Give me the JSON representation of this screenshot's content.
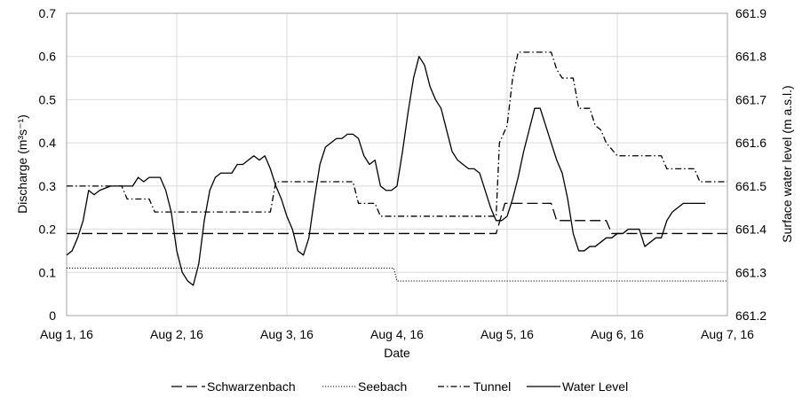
{
  "chart_data": {
    "type": "line",
    "title": "",
    "xlabel": "Date",
    "ylabel_left": "Discharge (m³s⁻¹)",
    "ylabel_right": "Surface water level (m a.s.l.)",
    "x_ticks": [
      "Aug 1, 16",
      "Aug 2, 16",
      "Aug 3, 16",
      "Aug 4, 16",
      "Aug 5, 16",
      "Aug 6, 16",
      "Aug 7, 16"
    ],
    "xlim_days": [
      0,
      6
    ],
    "ylim_left": [
      0,
      0.7
    ],
    "yticks_left": [
      "0",
      "0.1",
      "0.2",
      "0.3",
      "0.4",
      "0.5",
      "0.6",
      "0.7"
    ],
    "ylim_right": [
      661.2,
      661.9
    ],
    "yticks_right": [
      "661.2",
      "661.3",
      "661.4",
      "661.5",
      "661.6",
      "661.7",
      "661.8",
      "661.9"
    ],
    "grid": true,
    "legend_position": "bottom",
    "series": [
      {
        "name": "Schwarzenbach",
        "axis": "left",
        "dash": "dashed",
        "points": [
          [
            0,
            0.19
          ],
          [
            3.9,
            0.19
          ],
          [
            3.98,
            0.26
          ],
          [
            4.4,
            0.26
          ],
          [
            4.45,
            0.22
          ],
          [
            4.9,
            0.22
          ],
          [
            4.95,
            0.19
          ],
          [
            6,
            0.19
          ]
        ]
      },
      {
        "name": "Seebach",
        "axis": "left",
        "dash": "dotted",
        "points": [
          [
            0,
            0.11
          ],
          [
            2.97,
            0.11
          ],
          [
            3.0,
            0.08
          ],
          [
            6,
            0.08
          ]
        ]
      },
      {
        "name": "Tunnel",
        "axis": "left",
        "dash": "dashdot",
        "points": [
          [
            0,
            0.3
          ],
          [
            0.5,
            0.3
          ],
          [
            0.55,
            0.27
          ],
          [
            0.75,
            0.27
          ],
          [
            0.8,
            0.24
          ],
          [
            1.85,
            0.24
          ],
          [
            1.9,
            0.31
          ],
          [
            2.6,
            0.31
          ],
          [
            2.65,
            0.26
          ],
          [
            2.8,
            0.26
          ],
          [
            2.85,
            0.23
          ],
          [
            3.9,
            0.23
          ],
          [
            3.93,
            0.4
          ],
          [
            4.0,
            0.44
          ],
          [
            4.05,
            0.55
          ],
          [
            4.1,
            0.61
          ],
          [
            4.4,
            0.61
          ],
          [
            4.45,
            0.57
          ],
          [
            4.5,
            0.55
          ],
          [
            4.6,
            0.55
          ],
          [
            4.65,
            0.48
          ],
          [
            4.75,
            0.48
          ],
          [
            4.8,
            0.44
          ],
          [
            4.85,
            0.43
          ],
          [
            4.9,
            0.4
          ],
          [
            5.0,
            0.37
          ],
          [
            5.4,
            0.37
          ],
          [
            5.45,
            0.34
          ],
          [
            5.7,
            0.34
          ],
          [
            5.75,
            0.31
          ],
          [
            6,
            0.31
          ]
        ]
      },
      {
        "name": "Water Level",
        "axis": "right",
        "dash": "solid",
        "points": [
          [
            0,
            661.34
          ],
          [
            0.05,
            661.35
          ],
          [
            0.1,
            661.38
          ],
          [
            0.15,
            661.42
          ],
          [
            0.2,
            661.49
          ],
          [
            0.25,
            661.48
          ],
          [
            0.3,
            661.49
          ],
          [
            0.4,
            661.5
          ],
          [
            0.5,
            661.5
          ],
          [
            0.6,
            661.5
          ],
          [
            0.65,
            661.52
          ],
          [
            0.7,
            661.51
          ],
          [
            0.75,
            661.52
          ],
          [
            0.8,
            661.52
          ],
          [
            0.85,
            661.52
          ],
          [
            0.9,
            661.49
          ],
          [
            0.95,
            661.44
          ],
          [
            1.0,
            661.35
          ],
          [
            1.05,
            661.3
          ],
          [
            1.1,
            661.28
          ],
          [
            1.15,
            661.27
          ],
          [
            1.2,
            661.32
          ],
          [
            1.25,
            661.42
          ],
          [
            1.3,
            661.49
          ],
          [
            1.35,
            661.52
          ],
          [
            1.4,
            661.53
          ],
          [
            1.5,
            661.53
          ],
          [
            1.55,
            661.55
          ],
          [
            1.6,
            661.55
          ],
          [
            1.65,
            661.56
          ],
          [
            1.7,
            661.57
          ],
          [
            1.75,
            661.56
          ],
          [
            1.8,
            661.57
          ],
          [
            1.85,
            661.54
          ],
          [
            1.9,
            661.5
          ],
          [
            1.95,
            661.47
          ],
          [
            2.0,
            661.43
          ],
          [
            2.05,
            661.4
          ],
          [
            2.1,
            661.35
          ],
          [
            2.15,
            661.34
          ],
          [
            2.2,
            661.38
          ],
          [
            2.25,
            661.47
          ],
          [
            2.3,
            661.55
          ],
          [
            2.35,
            661.59
          ],
          [
            2.4,
            661.6
          ],
          [
            2.45,
            661.61
          ],
          [
            2.5,
            661.61
          ],
          [
            2.55,
            661.62
          ],
          [
            2.6,
            661.62
          ],
          [
            2.65,
            661.61
          ],
          [
            2.7,
            661.57
          ],
          [
            2.75,
            661.55
          ],
          [
            2.8,
            661.56
          ],
          [
            2.85,
            661.5
          ],
          [
            2.9,
            661.49
          ],
          [
            2.95,
            661.49
          ],
          [
            3.0,
            661.5
          ],
          [
            3.05,
            661.58
          ],
          [
            3.1,
            661.67
          ],
          [
            3.15,
            661.75
          ],
          [
            3.2,
            661.8
          ],
          [
            3.25,
            661.78
          ],
          [
            3.3,
            661.73
          ],
          [
            3.35,
            661.7
          ],
          [
            3.4,
            661.68
          ],
          [
            3.45,
            661.63
          ],
          [
            3.5,
            661.58
          ],
          [
            3.55,
            661.56
          ],
          [
            3.6,
            661.55
          ],
          [
            3.65,
            661.54
          ],
          [
            3.7,
            661.54
          ],
          [
            3.75,
            661.53
          ],
          [
            3.8,
            661.49
          ],
          [
            3.85,
            661.45
          ],
          [
            3.9,
            661.42
          ],
          [
            3.95,
            661.42
          ],
          [
            4.0,
            661.43
          ],
          [
            4.05,
            661.47
          ],
          [
            4.1,
            661.52
          ],
          [
            4.15,
            661.58
          ],
          [
            4.2,
            661.63
          ],
          [
            4.25,
            661.68
          ],
          [
            4.3,
            661.68
          ],
          [
            4.35,
            661.64
          ],
          [
            4.4,
            661.6
          ],
          [
            4.45,
            661.56
          ],
          [
            4.5,
            661.53
          ],
          [
            4.55,
            661.47
          ],
          [
            4.6,
            661.39
          ],
          [
            4.65,
            661.35
          ],
          [
            4.7,
            661.35
          ],
          [
            4.75,
            661.36
          ],
          [
            4.8,
            661.36
          ],
          [
            4.85,
            661.37
          ],
          [
            4.9,
            661.38
          ],
          [
            4.95,
            661.38
          ],
          [
            5.0,
            661.39
          ],
          [
            5.05,
            661.39
          ],
          [
            5.1,
            661.4
          ],
          [
            5.15,
            661.4
          ],
          [
            5.2,
            661.4
          ],
          [
            5.25,
            661.36
          ],
          [
            5.3,
            661.37
          ],
          [
            5.35,
            661.38
          ],
          [
            5.4,
            661.38
          ],
          [
            5.45,
            661.42
          ],
          [
            5.5,
            661.44
          ],
          [
            5.55,
            661.45
          ],
          [
            5.6,
            661.46
          ],
          [
            5.65,
            661.46
          ],
          [
            5.7,
            661.46
          ],
          [
            5.75,
            661.46
          ],
          [
            5.8,
            661.46
          ]
        ]
      }
    ]
  }
}
